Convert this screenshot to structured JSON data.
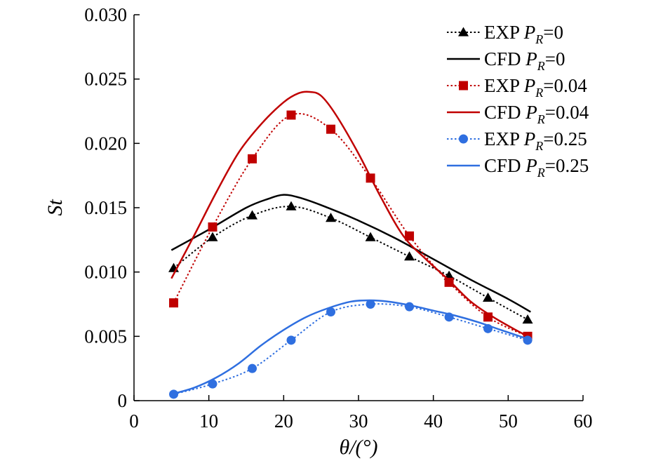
{
  "chart_data": {
    "type": "line",
    "title": "",
    "xlabel": "θ/(°)",
    "ylabel": "St",
    "xlim": [
      0,
      60
    ],
    "ylim": [
      0,
      0.03
    ],
    "xticks": [
      "0",
      "10",
      "20",
      "30",
      "40",
      "50",
      "60"
    ],
    "yticks": [
      "0",
      "0.005",
      "0.010",
      "0.015",
      "0.020",
      "0.025",
      "0.030"
    ],
    "grid": false,
    "legend_position": "top-right",
    "series": [
      {
        "name": "EXP P_R=0",
        "legend_prefix": "EXP",
        "legend_symbol": "P",
        "legend_subscript": "R",
        "legend_value": "=0",
        "color": "#000000",
        "line_style": "dotted",
        "marker": "triangle",
        "x": [
          5.3,
          10.5,
          15.8,
          21.0,
          26.3,
          31.6,
          36.8,
          42.1,
          47.3,
          52.6
        ],
        "y": [
          0.0103,
          0.0127,
          0.0144,
          0.0151,
          0.0142,
          0.0127,
          0.0112,
          0.0097,
          0.008,
          0.0063
        ]
      },
      {
        "name": "CFD P_R=0",
        "legend_prefix": "CFD",
        "legend_symbol": "P",
        "legend_subscript": "R",
        "legend_value": "=0",
        "color": "#000000",
        "line_style": "solid",
        "marker": "none",
        "x": [
          5.0,
          10.0,
          15.0,
          18.0,
          20.0,
          22.0,
          25.0,
          30.0,
          35.0,
          40.0,
          45.0,
          50.0,
          53.0
        ],
        "y": [
          0.0117,
          0.0133,
          0.015,
          0.0157,
          0.016,
          0.0158,
          0.0152,
          0.014,
          0.0126,
          0.011,
          0.0094,
          0.0079,
          0.0069
        ]
      },
      {
        "name": "EXP P_R=0.04",
        "legend_prefix": "EXP",
        "legend_symbol": "P",
        "legend_subscript": "R",
        "legend_value": "=0.04",
        "color": "#c00000",
        "line_style": "dotted",
        "marker": "square",
        "x": [
          5.3,
          10.5,
          15.8,
          21.0,
          26.3,
          31.6,
          36.8,
          42.1,
          47.3,
          52.6
        ],
        "y": [
          0.0076,
          0.0135,
          0.0188,
          0.0222,
          0.0211,
          0.0173,
          0.0128,
          0.0092,
          0.0065,
          0.005
        ]
      },
      {
        "name": "CFD P_R=0.04",
        "legend_prefix": "CFD",
        "legend_symbol": "P",
        "legend_subscript": "R",
        "legend_value": "=0.04",
        "color": "#c00000",
        "line_style": "solid",
        "marker": "none",
        "x": [
          5.0,
          8.0,
          11.0,
          14.0,
          17.0,
          20.0,
          22.0,
          23.5,
          25.0,
          27.0,
          30.0,
          33.0,
          36.0,
          39.0,
          42.0,
          45.0,
          48.0,
          51.0,
          53.0
        ],
        "y": [
          0.0095,
          0.0128,
          0.0162,
          0.0193,
          0.0215,
          0.0232,
          0.0239,
          0.024,
          0.0237,
          0.0222,
          0.0192,
          0.0158,
          0.0128,
          0.011,
          0.0094,
          0.0077,
          0.0065,
          0.0055,
          0.0049
        ]
      },
      {
        "name": "EXP P_R=0.25",
        "legend_prefix": "EXP",
        "legend_symbol": "P",
        "legend_subscript": "R",
        "legend_value": "=0.25",
        "color": "#2f6fe0",
        "line_style": "dotted",
        "marker": "circle",
        "x": [
          5.3,
          10.5,
          15.8,
          21.0,
          26.3,
          31.6,
          36.8,
          42.1,
          47.3,
          52.6
        ],
        "y": [
          0.0005,
          0.0013,
          0.0025,
          0.0047,
          0.0069,
          0.0075,
          0.0073,
          0.0065,
          0.0056,
          0.0047
        ]
      },
      {
        "name": "CFD P_R=0.25",
        "legend_prefix": "CFD",
        "legend_symbol": "P",
        "legend_subscript": "R",
        "legend_value": "=0.25",
        "color": "#2f6fe0",
        "line_style": "solid",
        "marker": "none",
        "x": [
          5.0,
          8.0,
          11.0,
          14.0,
          17.0,
          20.0,
          23.0,
          26.0,
          29.0,
          31.5,
          34.0,
          37.0,
          40.0,
          43.0,
          46.0,
          49.0,
          52.6
        ],
        "y": [
          0.0005,
          0.001,
          0.0018,
          0.0029,
          0.0043,
          0.0055,
          0.0065,
          0.0072,
          0.0077,
          0.0078,
          0.0077,
          0.0074,
          0.007,
          0.0066,
          0.0061,
          0.0055,
          0.0048
        ]
      }
    ]
  }
}
